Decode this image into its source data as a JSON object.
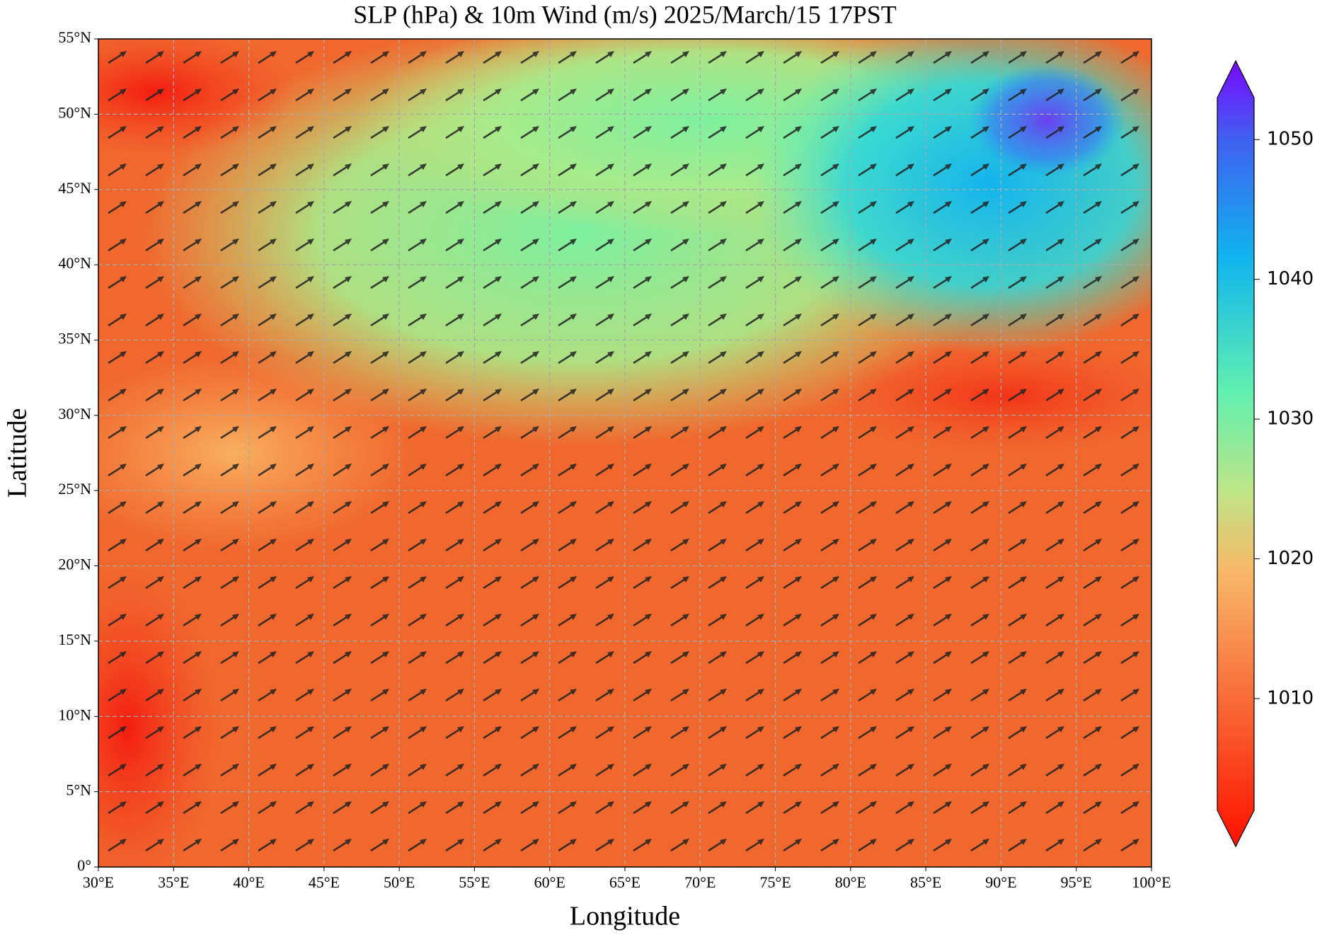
{
  "map": {
    "title": "SLP (hPa) & 10m Wind (m/s)  2025/March/15  17PST",
    "xlabel": "Longitude",
    "ylabel": "Latitude",
    "xlim": [
      30,
      100
    ],
    "ylim": [
      0,
      55
    ],
    "xticks": [
      {
        "value": 30,
        "label": "30°E"
      },
      {
        "value": 35,
        "label": "35°E"
      },
      {
        "value": 40,
        "label": "40°E"
      },
      {
        "value": 45,
        "label": "45°E"
      },
      {
        "value": 50,
        "label": "50°E"
      },
      {
        "value": 55,
        "label": "55°E"
      },
      {
        "value": 60,
        "label": "60°E"
      },
      {
        "value": 65,
        "label": "65°E"
      },
      {
        "value": 70,
        "label": "70°E"
      },
      {
        "value": 75,
        "label": "75°E"
      },
      {
        "value": 80,
        "label": "80°E"
      },
      {
        "value": 85,
        "label": "85°E"
      },
      {
        "value": 90,
        "label": "90°E"
      },
      {
        "value": 95,
        "label": "95°E"
      },
      {
        "value": 100,
        "label": "100°E"
      }
    ],
    "yticks": [
      {
        "value": 0,
        "label": "0°"
      },
      {
        "value": 5,
        "label": "5°N"
      },
      {
        "value": 10,
        "label": "10°N"
      },
      {
        "value": 15,
        "label": "15°N"
      },
      {
        "value": 20,
        "label": "20°N"
      },
      {
        "value": 25,
        "label": "25°N"
      },
      {
        "value": 30,
        "label": "30°N"
      },
      {
        "value": 35,
        "label": "35°N"
      },
      {
        "value": 40,
        "label": "40°N"
      },
      {
        "value": 45,
        "label": "45°N"
      },
      {
        "value": 50,
        "label": "50°N"
      },
      {
        "value": 55,
        "label": "55°N"
      }
    ],
    "grid": true,
    "colorbar": {
      "lim": [
        1002,
        1053
      ],
      "ticks": [
        1010,
        1020,
        1030,
        1040,
        1050
      ]
    }
  }
}
